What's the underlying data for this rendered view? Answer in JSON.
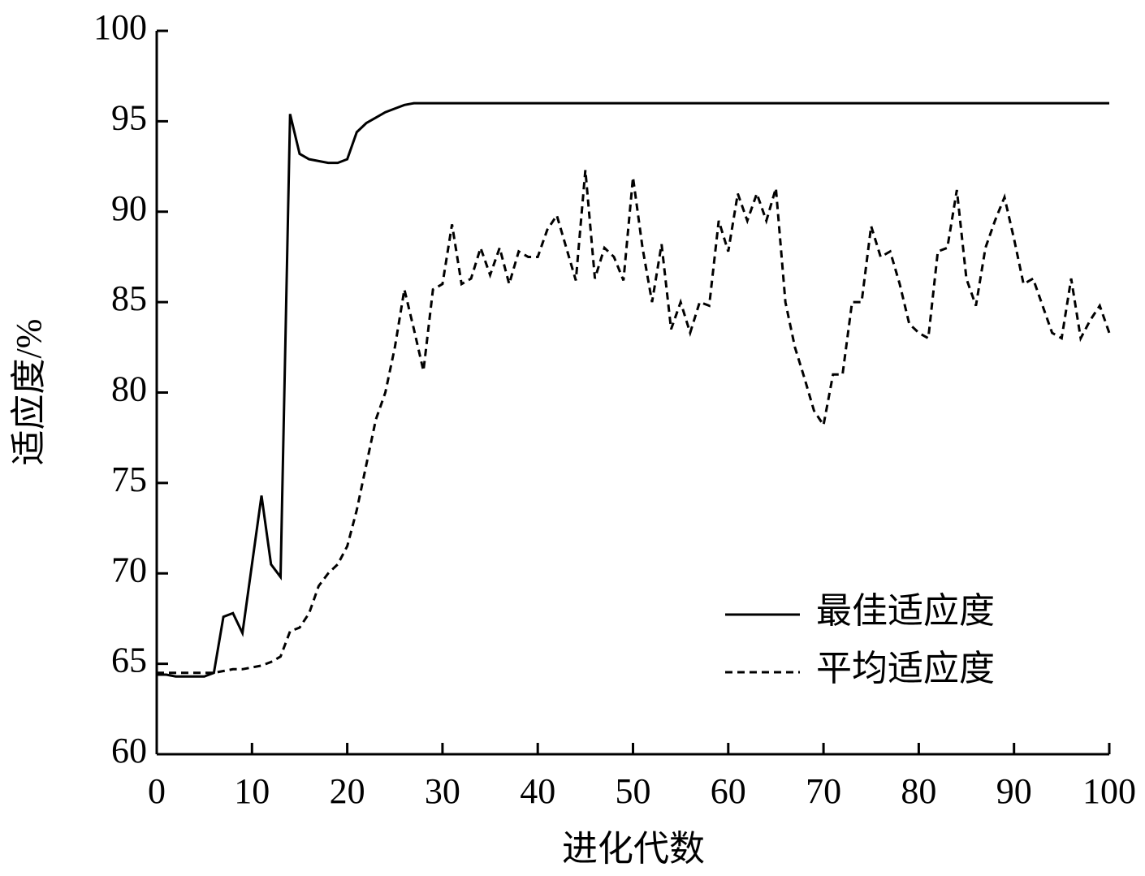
{
  "chart_data": {
    "type": "line",
    "x_label": "进化代数",
    "y_label": "适应度/%",
    "x": [
      0,
      1,
      2,
      3,
      4,
      5,
      6,
      7,
      8,
      9,
      10,
      11,
      12,
      13,
      14,
      15,
      16,
      17,
      18,
      19,
      20,
      21,
      22,
      23,
      24,
      25,
      26,
      27,
      28,
      29,
      30,
      31,
      32,
      33,
      34,
      35,
      36,
      37,
      38,
      39,
      40,
      41,
      42,
      43,
      44,
      45,
      46,
      47,
      48,
      49,
      50,
      51,
      52,
      53,
      54,
      55,
      56,
      57,
      58,
      59,
      60,
      61,
      62,
      63,
      64,
      65,
      66,
      67,
      68,
      69,
      70,
      71,
      72,
      73,
      74,
      75,
      76,
      77,
      78,
      79,
      80,
      81,
      82,
      83,
      84,
      85,
      86,
      87,
      88,
      89,
      90,
      91,
      92,
      93,
      94,
      95,
      96,
      97,
      98,
      99,
      100
    ],
    "series": [
      {
        "name": "最佳适应度",
        "color": "#000000",
        "dash": false,
        "values": [
          64.4,
          64.4,
          64.3,
          64.3,
          64.3,
          64.3,
          64.5,
          67.6,
          67.8,
          66.7,
          70.5,
          74.3,
          70.5,
          69.8,
          95.4,
          93.2,
          92.9,
          92.8,
          92.7,
          92.7,
          92.9,
          94.4,
          94.9,
          95.2,
          95.5,
          95.7,
          95.9,
          96.0,
          96.0,
          96.0,
          96.0,
          96.0,
          96.0,
          96.0,
          96.0,
          96.0,
          96.0,
          96.0,
          96.0,
          96.0,
          96.0,
          96.0,
          96.0,
          96.0,
          96.0,
          96.0,
          96.0,
          96.0,
          96.0,
          96.0,
          96.0,
          96.0,
          96.0,
          96.0,
          96.0,
          96.0,
          96.0,
          96.0,
          96.0,
          96.0,
          96.0,
          96.0,
          96.0,
          96.0,
          96.0,
          96.0,
          96.0,
          96.0,
          96.0,
          96.0,
          96.0,
          96.0,
          96.0,
          96.0,
          96.0,
          96.0,
          96.0,
          96.0,
          96.0,
          96.0,
          96.0,
          96.0,
          96.0,
          96.0,
          96.0,
          96.0,
          96.0,
          96.0,
          96.0,
          96.0,
          96.0,
          96.0,
          96.0,
          96.0,
          96.0,
          96.0,
          96.0,
          96.0,
          96.0,
          96.0,
          96.0
        ]
      },
      {
        "name": "平均适应度",
        "color": "#000000",
        "dash": true,
        "values": [
          64.5,
          64.5,
          64.5,
          64.5,
          64.5,
          64.5,
          64.5,
          64.6,
          64.7,
          64.7,
          64.8,
          64.9,
          65.1,
          65.4,
          66.8,
          67.0,
          67.8,
          69.3,
          70.0,
          70.5,
          71.5,
          73.5,
          76.0,
          78.5,
          80.0,
          82.5,
          85.7,
          83.5,
          81.2,
          85.7,
          86.0,
          89.3,
          86.0,
          86.3,
          88.0,
          86.5,
          88.0,
          86.0,
          87.8,
          87.5,
          87.5,
          89.0,
          89.8,
          88.0,
          86.2,
          92.3,
          86.3,
          88.0,
          87.5,
          86.2,
          91.9,
          88.0,
          85.0,
          88.2,
          83.5,
          85.0,
          83.3,
          85.0,
          84.8,
          89.5,
          87.8,
          91.0,
          89.5,
          91.0,
          89.5,
          91.3,
          85.0,
          82.5,
          80.8,
          79.0,
          78.2,
          81.0,
          81.0,
          85.0,
          85.0,
          89.2,
          87.5,
          87.8,
          86.0,
          83.8,
          83.3,
          83.0,
          87.8,
          88.0,
          91.2,
          86.3,
          84.8,
          88.0,
          89.5,
          90.8,
          88.5,
          86.0,
          86.3,
          84.8,
          83.3,
          83.0,
          86.3,
          83.0,
          84.0,
          84.8,
          83.3
        ]
      }
    ],
    "xlim": [
      0,
      100
    ],
    "xticks": [
      0,
      10,
      20,
      30,
      40,
      50,
      60,
      70,
      80,
      90,
      100
    ],
    "ylim": [
      60,
      100
    ],
    "yticks": [
      60,
      65,
      70,
      75,
      80,
      85,
      90,
      95,
      100
    ],
    "legend": "lower-right"
  }
}
